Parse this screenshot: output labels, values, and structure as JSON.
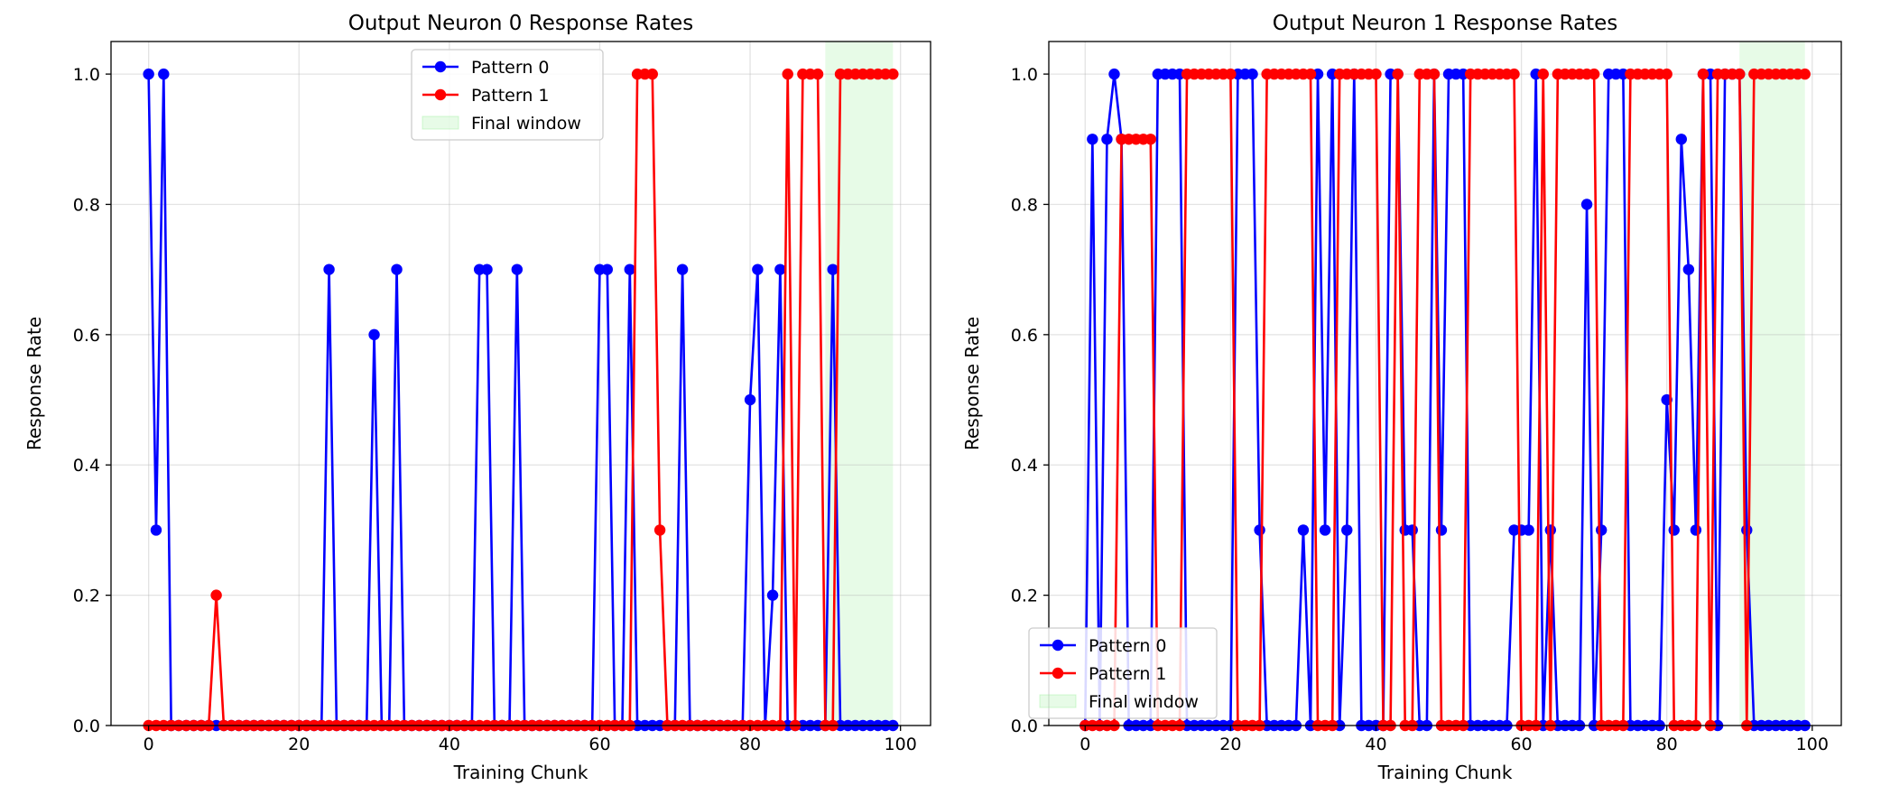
{
  "chart_data": [
    {
      "type": "line",
      "title": "Output Neuron 0 Response Rates",
      "xlabel": "Training Chunk",
      "ylabel": "Response Rate",
      "xlim": [
        -5,
        104
      ],
      "ylim": [
        0,
        1.05
      ],
      "xticks": [
        0,
        20,
        40,
        60,
        80,
        100
      ],
      "yticks": [
        0.0,
        0.2,
        0.4,
        0.6,
        0.8,
        1.0
      ],
      "grid": true,
      "legend_position": "upper-center",
      "shaded_region": {
        "label": "Final window",
        "x_range": [
          90,
          99
        ],
        "color": "#90ee90"
      },
      "series": [
        {
          "name": "Pattern 0",
          "color": "#0000ff",
          "values": [
            1.0,
            0.3,
            1.0,
            0,
            0,
            0,
            0,
            0,
            0,
            0,
            0,
            0,
            0,
            0,
            0,
            0,
            0,
            0,
            0,
            0,
            0,
            0,
            0,
            0,
            0.7,
            0,
            0,
            0,
            0,
            0,
            0.6,
            0,
            0,
            0.7,
            0,
            0,
            0,
            0,
            0,
            0,
            0,
            0,
            0,
            0,
            0.7,
            0.7,
            0,
            0,
            0,
            0.7,
            0,
            0,
            0,
            0,
            0,
            0,
            0,
            0,
            0,
            0,
            0.7,
            0.7,
            0,
            0,
            0.7,
            0,
            0,
            0,
            0,
            0,
            0,
            0.7,
            0,
            0,
            0,
            0,
            0,
            0,
            0,
            0,
            0.5,
            0.7,
            0,
            0.2,
            0.7,
            0,
            0,
            0,
            0,
            0,
            0,
            0.7,
            0,
            0,
            0,
            0,
            0,
            0,
            0,
            0
          ]
        },
        {
          "name": "Pattern 1",
          "color": "#ff0000",
          "values": [
            0,
            0,
            0,
            0,
            0,
            0,
            0,
            0,
            0,
            0.2,
            0,
            0,
            0,
            0,
            0,
            0,
            0,
            0,
            0,
            0,
            0,
            0,
            0,
            0,
            0,
            0,
            0,
            0,
            0,
            0,
            0,
            0,
            0,
            0,
            0,
            0,
            0,
            0,
            0,
            0,
            0,
            0,
            0,
            0,
            0,
            0,
            0,
            0,
            0,
            0,
            0,
            0,
            0,
            0,
            0,
            0,
            0,
            0,
            0,
            0,
            0,
            0,
            0,
            0,
            0,
            1.0,
            1.0,
            1.0,
            0.3,
            0,
            0,
            0,
            0,
            0,
            0,
            0,
            0,
            0,
            0,
            0,
            0,
            0,
            0,
            0,
            0,
            1.0,
            0,
            1.0,
            1.0,
            1.0,
            0,
            0,
            1.0,
            1.0,
            1.0,
            1.0,
            1.0,
            1.0,
            1.0,
            1.0
          ]
        }
      ]
    },
    {
      "type": "line",
      "title": "Output Neuron 1 Response Rates",
      "xlabel": "Training Chunk",
      "ylabel": "Response Rate",
      "xlim": [
        -5,
        104
      ],
      "ylim": [
        0,
        1.05
      ],
      "xticks": [
        0,
        20,
        40,
        60,
        80,
        100
      ],
      "yticks": [
        0.0,
        0.2,
        0.4,
        0.6,
        0.8,
        1.0
      ],
      "grid": true,
      "legend_position": "lower-left",
      "shaded_region": {
        "label": "Final window",
        "x_range": [
          90,
          99
        ],
        "color": "#90ee90"
      },
      "series": [
        {
          "name": "Pattern 0",
          "color": "#0000ff",
          "values": [
            0,
            0.9,
            0,
            0.9,
            1.0,
            0.9,
            0,
            0,
            0,
            0,
            1.0,
            1.0,
            1.0,
            1.0,
            0,
            0,
            0,
            0,
            0,
            0,
            0,
            1.0,
            1.0,
            1.0,
            0.3,
            0,
            0,
            0,
            0,
            0,
            0.3,
            0,
            1.0,
            0.3,
            1.0,
            0,
            0.3,
            1.0,
            0,
            0,
            0,
            0,
            1.0,
            1.0,
            0.3,
            0.3,
            0,
            0,
            1.0,
            0.3,
            1.0,
            1.0,
            1.0,
            0,
            0,
            0,
            0,
            0,
            0,
            0.3,
            0.3,
            0.3,
            1.0,
            0,
            0.3,
            0,
            0,
            0,
            0,
            0.8,
            0,
            0.3,
            1.0,
            1.0,
            1.0,
            0,
            0,
            0,
            0,
            0,
            0.5,
            0.3,
            0.9,
            0.7,
            0.3,
            1.0,
            1.0,
            0,
            1.0,
            1.0,
            1.0,
            0.3,
            0,
            0,
            0,
            0,
            0,
            0,
            0,
            0
          ]
        },
        {
          "name": "Pattern 1",
          "color": "#ff0000",
          "values": [
            0,
            0,
            0,
            0,
            0,
            0.9,
            0.9,
            0.9,
            0.9,
            0.9,
            0,
            0,
            0,
            0,
            1.0,
            1.0,
            1.0,
            1.0,
            1.0,
            1.0,
            1.0,
            0,
            0,
            0,
            0,
            1.0,
            1.0,
            1.0,
            1.0,
            1.0,
            1.0,
            1.0,
            0,
            0,
            0,
            1.0,
            1.0,
            1.0,
            1.0,
            1.0,
            1.0,
            0,
            0,
            1.0,
            0,
            0,
            1.0,
            1.0,
            1.0,
            0,
            0,
            0,
            0,
            1.0,
            1.0,
            1.0,
            1.0,
            1.0,
            1.0,
            1.0,
            0,
            0,
            0,
            1.0,
            0,
            1.0,
            1.0,
            1.0,
            1.0,
            1.0,
            1.0,
            0,
            0,
            0,
            0,
            1.0,
            1.0,
            1.0,
            1.0,
            1.0,
            1.0,
            0,
            0,
            0,
            0,
            1.0,
            0,
            1.0,
            1.0,
            1.0,
            1.0,
            0,
            1.0,
            1.0,
            1.0,
            1.0,
            1.0,
            1.0,
            1.0,
            1.0
          ]
        }
      ]
    }
  ]
}
